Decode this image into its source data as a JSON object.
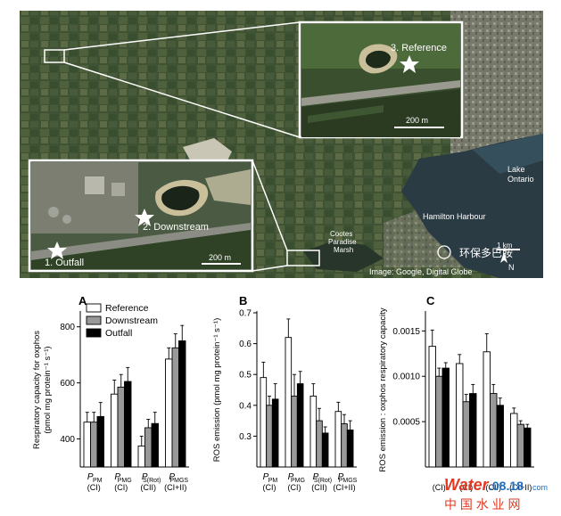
{
  "map": {
    "inset_reference": {
      "label": "3. Reference",
      "scale": "200 m"
    },
    "inset_downstream": {
      "label_downstream": "2. Downstream",
      "label_outfall": "1. Outfall",
      "scale": "200 m"
    },
    "lake_label": "Lake\nOntario",
    "harbour_label": "Hamilton Harbour",
    "marsh_label": "Cootes\nParadise\nMarsh",
    "scale_label": "1 km",
    "north_label": "N",
    "credit": "Image: Google, Digital Globe",
    "watermark_cn": "环保多巴胺",
    "watermark_site_a": "Water",
    "watermark_site_b": ".08.18",
    "watermark_com": "com",
    "watermark_cn2": "中 国 水 业 网"
  },
  "legend": {
    "items": [
      "Reference",
      "Downstream",
      "Outfall"
    ]
  },
  "colors": {
    "reference": "#ffffff",
    "downstream": "#999999",
    "outfall": "#000000"
  },
  "chart_data": [
    {
      "panel": "A",
      "type": "bar",
      "ylabel_line1": "Respiratory capacity for oxphos",
      "ylabel_line2": "(pmol mg protein⁻¹ s⁻¹)",
      "ylim": [
        300,
        850
      ],
      "yticks": [
        400,
        600,
        800
      ],
      "categories": [
        {
          "main": "P",
          "sub": "PM",
          "group": "(CI)"
        },
        {
          "main": "P",
          "sub": "PMG",
          "group": "(CI)"
        },
        {
          "main": "P",
          "sub": "S(Rot)",
          "group": "(CII)"
        },
        {
          "main": "P",
          "sub": "PMGS",
          "group": "(CI+II)"
        }
      ],
      "series": [
        {
          "name": "Reference",
          "values": [
            460,
            560,
            375,
            685
          ],
          "errors": [
            35,
            50,
            35,
            40
          ]
        },
        {
          "name": "Downstream",
          "values": [
            460,
            585,
            440,
            725
          ],
          "errors": [
            35,
            45,
            30,
            50
          ]
        },
        {
          "name": "Outfall",
          "values": [
            480,
            605,
            455,
            750
          ],
          "errors": [
            50,
            50,
            40,
            55
          ]
        }
      ]
    },
    {
      "panel": "B",
      "type": "bar",
      "ylabel_line1": "ROS emission (pmol mg protein⁻¹ s⁻¹)",
      "ylim": [
        0.2,
        0.7
      ],
      "yticks": [
        0.3,
        0.4,
        0.5,
        0.6,
        0.7
      ],
      "categories": [
        {
          "main": "P",
          "sub": "PM",
          "group": "(CI)"
        },
        {
          "main": "P",
          "sub": "PMG",
          "group": "(CI)"
        },
        {
          "main": "P",
          "sub": "S(Rot)",
          "group": "(CII)"
        },
        {
          "main": "P",
          "sub": "PMGS",
          "group": "(CI+II)"
        }
      ],
      "series": [
        {
          "name": "Reference",
          "values": [
            0.49,
            0.62,
            0.43,
            0.38
          ],
          "errors": [
            0.05,
            0.06,
            0.04,
            0.03
          ]
        },
        {
          "name": "Downstream",
          "values": [
            0.4,
            0.43,
            0.35,
            0.34
          ],
          "errors": [
            0.03,
            0.07,
            0.04,
            0.03
          ]
        },
        {
          "name": "Outfall",
          "values": [
            0.42,
            0.47,
            0.31,
            0.32
          ],
          "errors": [
            0.05,
            0.04,
            0.02,
            0.03
          ]
        }
      ]
    },
    {
      "panel": "C",
      "type": "bar",
      "ylabel_line1": "ROS emission : oxphos respiratory capacity",
      "ylim": [
        0.0,
        0.0017
      ],
      "yticks": [
        0.0005,
        0.001,
        0.0015
      ],
      "ytick_labels": [
        "0.0005",
        "0.0010",
        "0.0015"
      ],
      "categories": [
        {
          "main": "",
          "sub": "",
          "group": "(CI)"
        },
        {
          "main": "",
          "sub": "",
          "group": "(CI)"
        },
        {
          "main": "",
          "sub": "",
          "group": "(CII)"
        },
        {
          "main": "",
          "sub": "",
          "group": "(CI+II)"
        }
      ],
      "series": [
        {
          "name": "Reference",
          "values": [
            0.00133,
            0.00114,
            0.00127,
            0.00059
          ],
          "errors": [
            0.00018,
            0.0001,
            0.0002,
            6e-05
          ]
        },
        {
          "name": "Downstream",
          "values": [
            0.001,
            0.00072,
            0.00081,
            0.00047
          ],
          "errors": [
            9e-05,
            8e-05,
            0.0001,
            4e-05
          ]
        },
        {
          "name": "Outfall",
          "values": [
            0.00109,
            0.00081,
            0.00068,
            0.00043
          ],
          "errors": [
            6e-05,
            0.0001,
            8e-05,
            4e-05
          ]
        }
      ]
    }
  ]
}
